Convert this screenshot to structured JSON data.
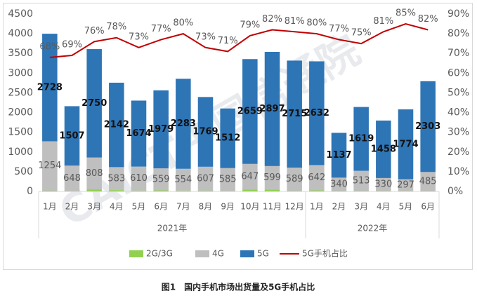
{
  "chart_data": {
    "type": "bar",
    "stacked": true,
    "caption": "图1　国内手机市场出货量及5G手机占比",
    "watermark": "CAICT中国信通院",
    "category_groups": [
      {
        "label": "2021年",
        "categories": [
          "1月",
          "2月",
          "3月",
          "4月",
          "5月",
          "6月",
          "7月",
          "8月",
          "9月",
          "10月",
          "11月",
          "12月"
        ]
      },
      {
        "label": "2022年",
        "categories": [
          "1月",
          "2月",
          "3月",
          "4月",
          "5月",
          "6月"
        ]
      }
    ],
    "series": [
      {
        "name": "2G/3G",
        "color": "#92d050",
        "data_labels": false,
        "values": [
          18,
          7,
          52,
          33,
          20,
          26,
          20,
          19,
          7,
          51,
          44,
          15,
          26,
          9,
          10,
          10,
          11,
          8
        ]
      },
      {
        "name": "4G",
        "color": "#bfbfbf",
        "data_labels": true,
        "label_color": "#595959",
        "values": [
          1254,
          648,
          808,
          583,
          610,
          559,
          554,
          607,
          585,
          647,
          599,
          589,
          642,
          340,
          513,
          330,
          297,
          485
        ]
      },
      {
        "name": "5G",
        "color": "#2e75b6",
        "data_labels": true,
        "label_color": "#111111",
        "values": [
          2728,
          1507,
          2750,
          2142,
          1674,
          1979,
          2283,
          1769,
          1512,
          2659,
          2897,
          2715,
          2632,
          1137,
          1619,
          1458,
          1774,
          2303
        ]
      },
      {
        "name": "5G手机占比",
        "type": "line",
        "axis": "y2",
        "color": "#c00000",
        "data_labels": true,
        "label_color": "#595959",
        "values": [
          68,
          69,
          76,
          78,
          73,
          77,
          80,
          73,
          71,
          79,
          82,
          81,
          80,
          77,
          75,
          81,
          85,
          82
        ],
        "value_labels": [
          "68%",
          "69%",
          "76%",
          "78%",
          "73%",
          "77%",
          "80%",
          "73%",
          "71%",
          "79%",
          "82%",
          "81%",
          "80%",
          "77%",
          "75%",
          "81%",
          "85%",
          "82%"
        ]
      }
    ],
    "ylim": [
      0,
      4500
    ],
    "yticks": [
      0,
      500,
      1000,
      1500,
      2000,
      2500,
      3000,
      3500,
      4000,
      4500
    ],
    "y2lim": [
      0,
      90
    ],
    "y2ticks": [
      {
        "value": 0,
        "label": "0%"
      },
      {
        "value": 10,
        "label": "10%"
      },
      {
        "value": 20,
        "label": "20%"
      },
      {
        "value": 30,
        "label": "30%"
      },
      {
        "value": 40,
        "label": "40%"
      },
      {
        "value": 50,
        "label": "50%"
      },
      {
        "value": 60,
        "label": "60%"
      },
      {
        "value": 70,
        "label": "70%"
      },
      {
        "value": 80,
        "label": "80%"
      },
      {
        "value": 90,
        "label": "90%"
      }
    ],
    "grid": false,
    "legend": "bottom"
  }
}
